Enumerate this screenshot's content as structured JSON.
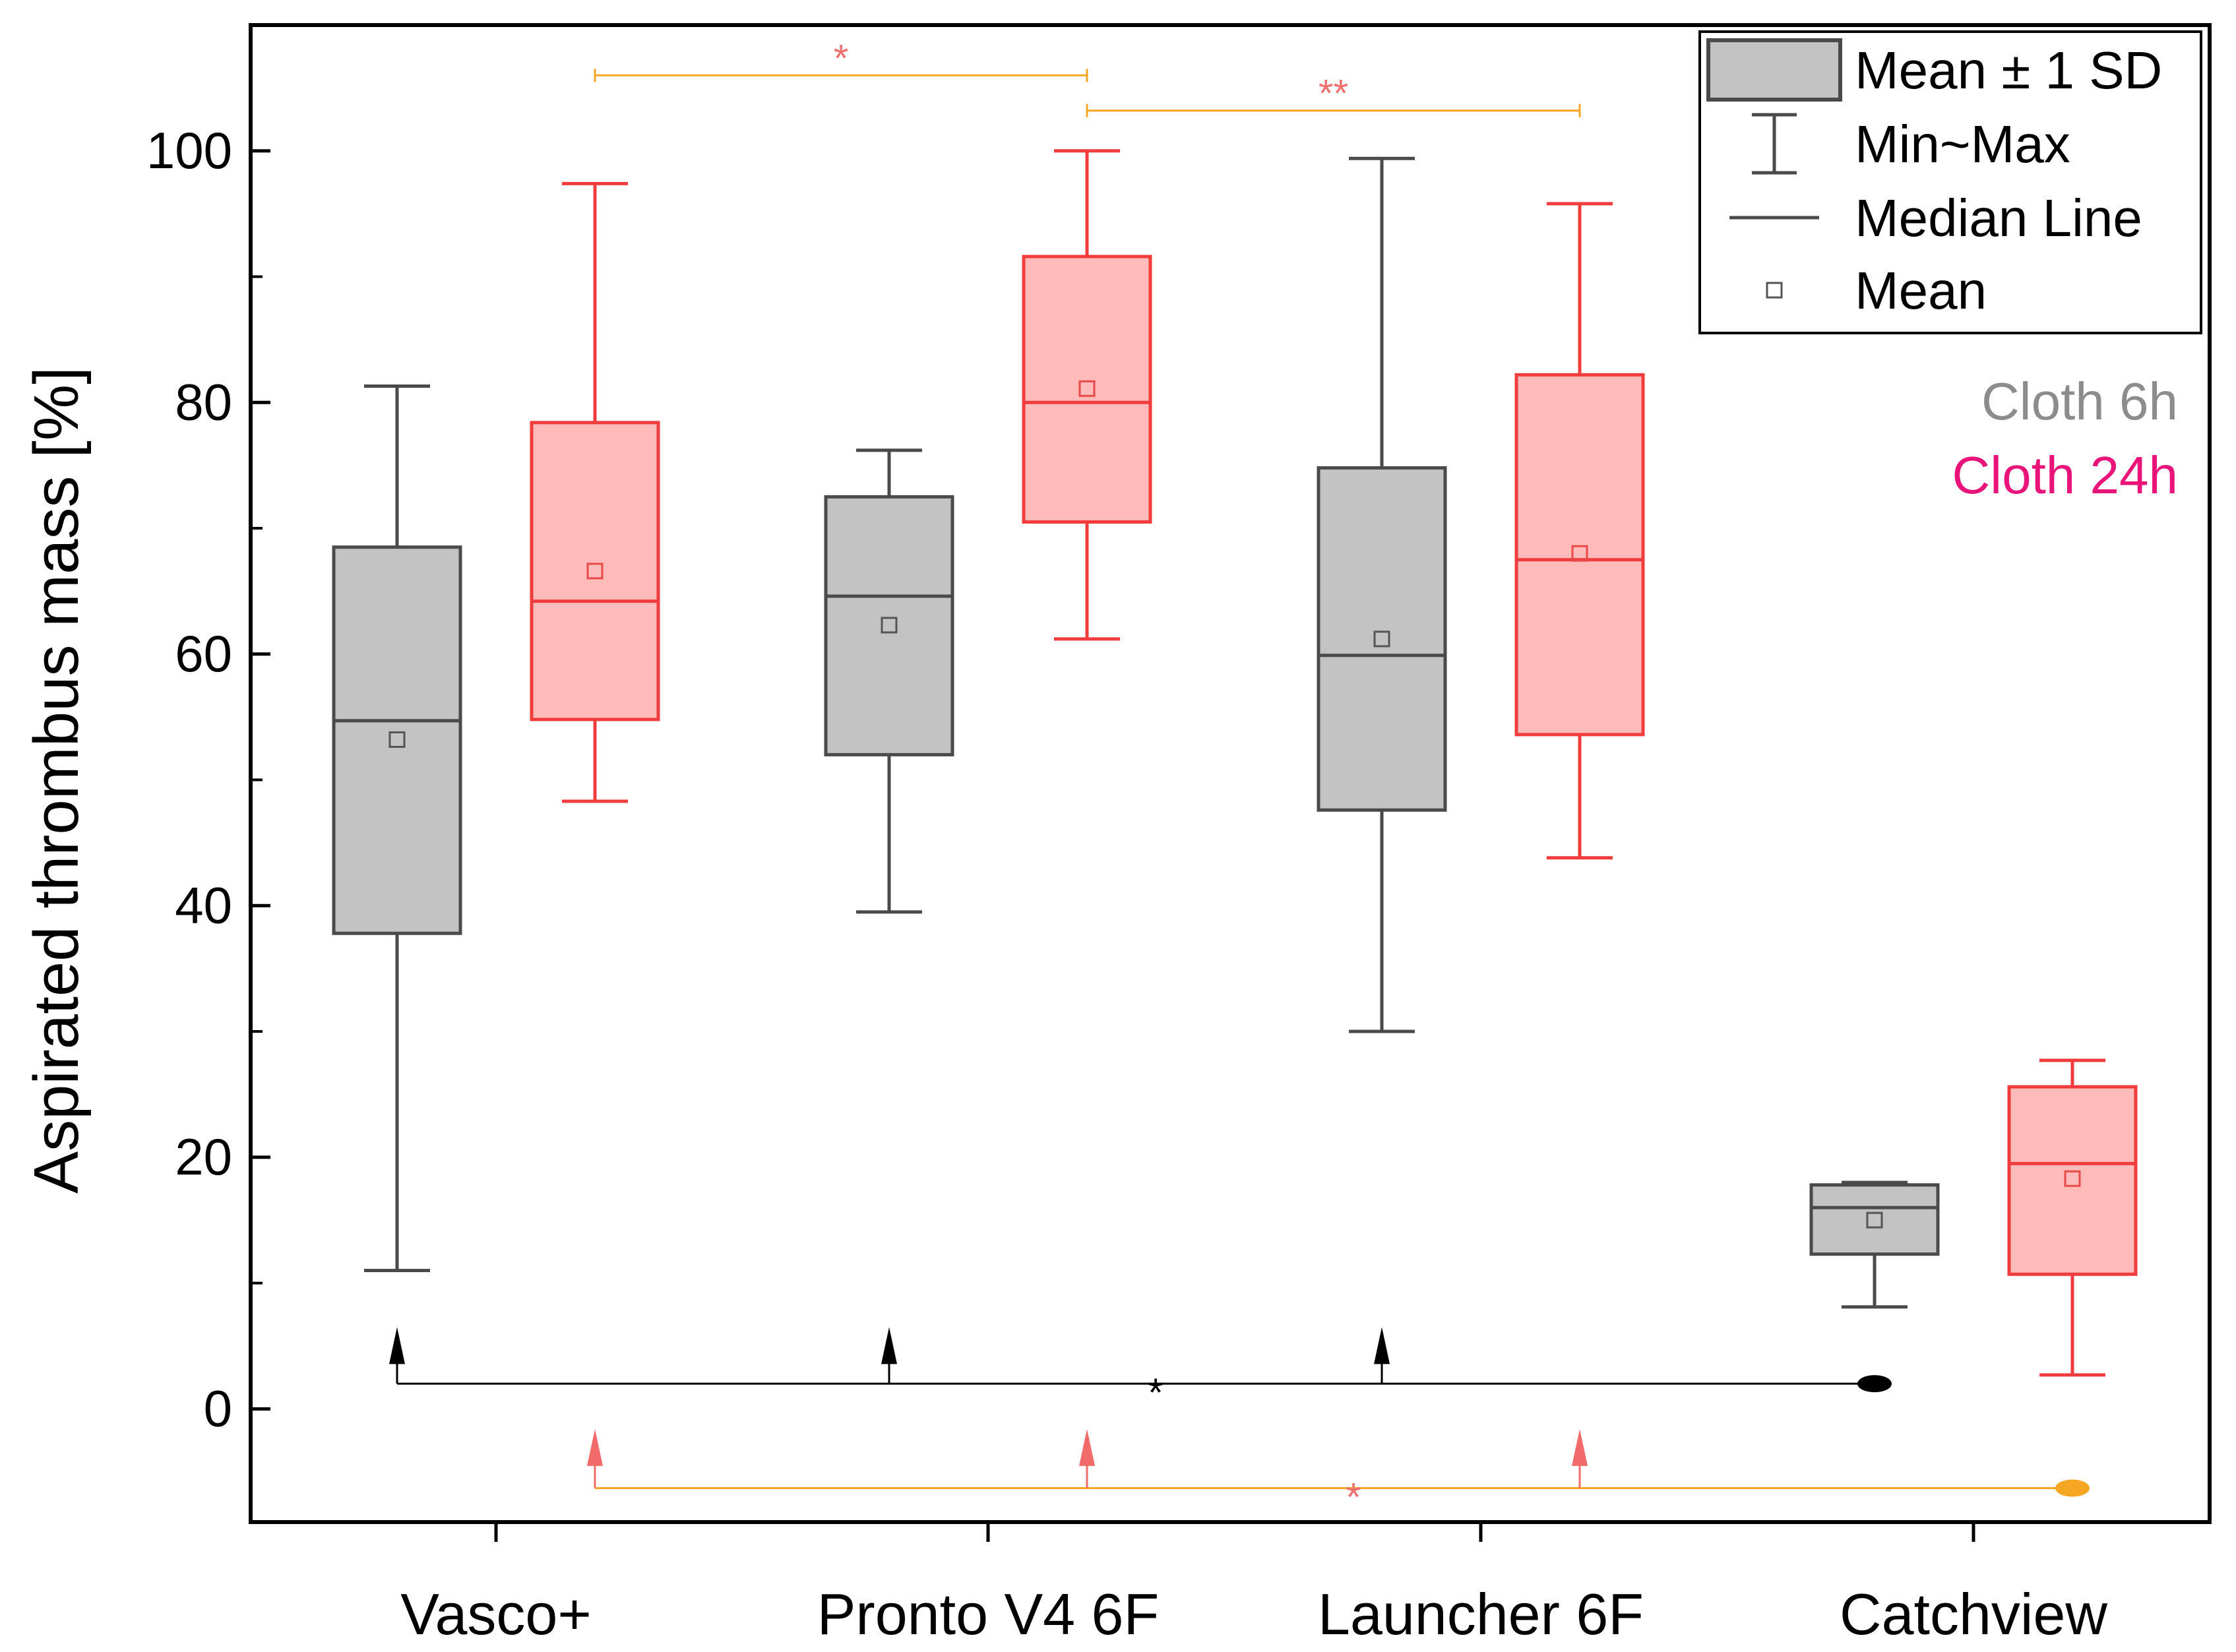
{
  "chart_data": {
    "type": "box",
    "ylabel": "Aspirated thrombus mass [%]",
    "xlabel": "",
    "ylim": [
      -9,
      110
    ],
    "yticks": [
      0,
      20,
      40,
      60,
      80,
      100
    ],
    "categories": [
      "Vasco+",
      "Pronto V4 6F",
      "Launcher 6F",
      "Catchview"
    ],
    "series": [
      {
        "name": "Cloth 6h",
        "color": "#4a4a4a",
        "fill": "#c3c3c3",
        "mean_marker_color": "#555555",
        "boxes": [
          {
            "min": 11.0,
            "q1": 37.8,
            "median": 54.7,
            "q3": 68.5,
            "max": 81.3,
            "mean": 53.2
          },
          {
            "min": 39.5,
            "q1": 52.0,
            "median": 64.6,
            "q3": 72.5,
            "max": 76.2,
            "mean": 62.3
          },
          {
            "min": 30.0,
            "q1": 47.6,
            "median": 59.9,
            "q3": 74.8,
            "max": 99.4,
            "mean": 61.2
          },
          {
            "min": 8.1,
            "q1": 12.3,
            "median": 16.0,
            "q3": 17.8,
            "max": 18.0,
            "mean": 15.0
          }
        ]
      },
      {
        "name": "Cloth 24h",
        "color": "#f03c3c",
        "fill": "#ffbaba",
        "mean_marker_color": "#e84a4a",
        "boxes": [
          {
            "min": 48.3,
            "q1": 54.8,
            "median": 64.2,
            "q3": 78.4,
            "max": 97.4,
            "mean": 66.6
          },
          {
            "min": 61.2,
            "q1": 70.5,
            "median": 80.0,
            "q3": 91.6,
            "max": 100.0,
            "mean": 81.1
          },
          {
            "min": 43.8,
            "q1": 53.6,
            "median": 67.5,
            "q3": 82.2,
            "max": 95.8,
            "mean": 68.0
          },
          {
            "min": 2.7,
            "q1": 10.7,
            "median": 19.5,
            "q3": 25.6,
            "max": 27.7,
            "mean": 18.3
          }
        ]
      }
    ],
    "group_legend": [
      {
        "label": "Cloth 6h",
        "color": "#8c8c8c"
      },
      {
        "label": "Cloth 24h",
        "color": "#e8147a"
      }
    ],
    "legend": {
      "placement": "top-right",
      "entries": [
        {
          "kind": "box",
          "label": "Mean ± 1 SD"
        },
        {
          "kind": "whisker",
          "label": "Min~Max"
        },
        {
          "kind": "median",
          "label": "Median Line"
        },
        {
          "kind": "mean",
          "label": "Mean"
        }
      ]
    },
    "significance": [
      {
        "from": [
          0,
          1
        ],
        "to": [
          1,
          1
        ],
        "y": 106,
        "label": "*",
        "color": "#f5a623",
        "text_color": "#f07070"
      },
      {
        "from": [
          1,
          1
        ],
        "to": [
          2,
          1
        ],
        "y": 103.2,
        "label": "**",
        "color": "#f5a623",
        "text_color": "#f07070"
      }
    ],
    "reference_comparisons": [
      {
        "series": 0,
        "y": 2.0,
        "label": "*",
        "color": "#000000",
        "text_color": "#000000",
        "arrow_from": [
          0,
          1,
          2
        ],
        "reference": 3,
        "arrow_tip": 6.5,
        "marker_color": "#000000"
      },
      {
        "series": 1,
        "y": -6.3,
        "label": "*",
        "color": "#f5a623",
        "text_color": "#f07070",
        "arrow_color": "#f26b6b",
        "arrow_from": [
          0,
          1,
          2
        ],
        "reference": 3,
        "arrow_tip": -1.6,
        "marker_color": "#f5a623"
      }
    ]
  }
}
